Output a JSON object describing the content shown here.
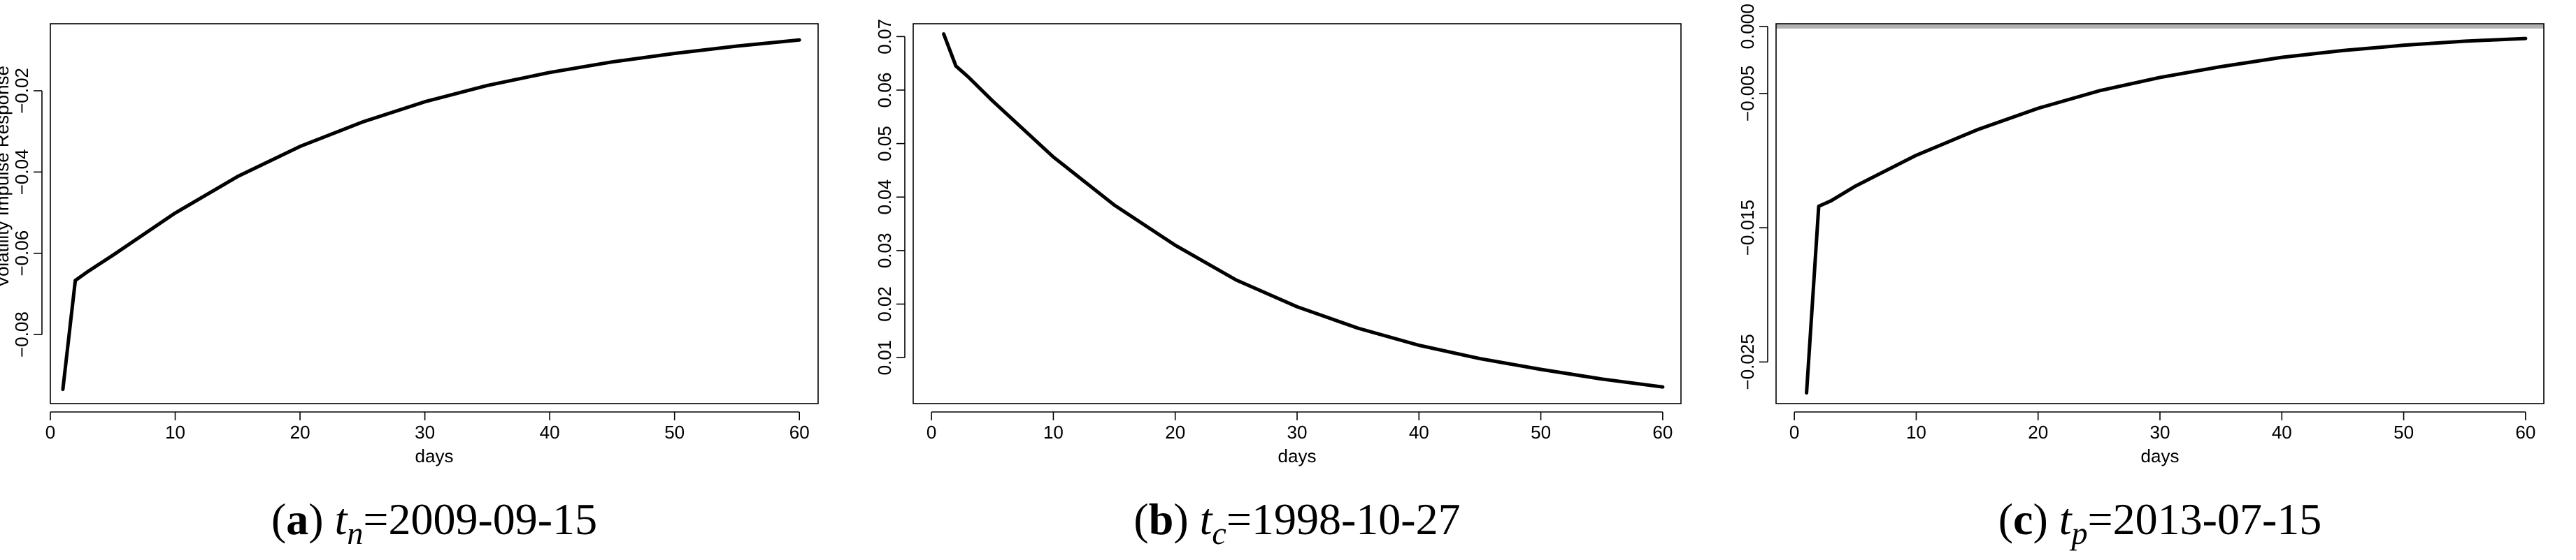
{
  "chart_data": [
    {
      "type": "line",
      "panel": "a",
      "caption_prefix": "(",
      "caption_letter": "a",
      "caption_suffix": ")",
      "caption_var": "t",
      "caption_sub": "n",
      "caption_value": "=2009-09-15",
      "xlabel": "days",
      "ylabel": "Volatility Impulse Response",
      "xlim": [
        0,
        61.5
      ],
      "ylim": [
        -0.097,
        -0.0035
      ],
      "xticks": [
        0,
        10,
        20,
        30,
        40,
        50,
        60
      ],
      "yticks": [
        -0.08,
        -0.06,
        -0.04,
        -0.02
      ],
      "ytick_labels": [
        "−0.08",
        "−0.06",
        "−0.04",
        "−0.02"
      ],
      "reference_line": null,
      "series": [
        {
          "x": [
            1,
            2,
            3,
            5,
            10,
            15,
            20,
            25,
            30,
            35,
            40,
            45,
            50,
            55,
            60
          ],
          "y": [
            -0.0935,
            -0.0667,
            -0.0645,
            -0.0605,
            -0.0501,
            -0.0411,
            -0.0337,
            -0.0277,
            -0.0227,
            -0.0187,
            -0.0155,
            -0.0129,
            -0.0108,
            -0.009,
            -0.0075
          ]
        }
      ]
    },
    {
      "type": "line",
      "panel": "b",
      "caption_prefix": "(",
      "caption_letter": "b",
      "caption_suffix": ")",
      "caption_var": "t",
      "caption_sub": "c",
      "caption_value": "=1998-10-27",
      "xlabel": "days",
      "ylabel": "",
      "xlim": [
        -1.5,
        61.5
      ],
      "ylim": [
        0.0014,
        0.0724
      ],
      "xticks": [
        0,
        10,
        20,
        30,
        40,
        50,
        60
      ],
      "yticks": [
        0.01,
        0.02,
        0.03,
        0.04,
        0.05,
        0.06,
        0.07
      ],
      "ytick_labels": [
        "0.01",
        "0.02",
        "0.03",
        "0.04",
        "0.05",
        "0.06",
        "0.07"
      ],
      "reference_line": null,
      "series": [
        {
          "x": [
            1,
            2,
            3,
            5,
            10,
            15,
            20,
            25,
            30,
            35,
            40,
            45,
            50,
            55,
            60
          ],
          "y": [
            0.0705,
            0.0645,
            0.0625,
            0.058,
            0.0475,
            0.0385,
            0.031,
            0.0245,
            0.0195,
            0.0155,
            0.0123,
            0.0098,
            0.0078,
            0.006,
            0.0045
          ]
        }
      ]
    },
    {
      "type": "line",
      "panel": "c",
      "caption_prefix": "(",
      "caption_letter": "c",
      "caption_suffix": ")",
      "caption_var": "t",
      "caption_sub": "p",
      "caption_value": "=2013-07-15",
      "xlabel": "days",
      "ylabel": "",
      "xlim": [
        -1.5,
        61.5
      ],
      "ylim": [
        -0.0281,
        0.0002
      ],
      "xticks": [
        0,
        10,
        20,
        30,
        40,
        50,
        60
      ],
      "yticks": [
        -0.025,
        -0.015,
        -0.005,
        0.0
      ],
      "ytick_labels": [
        "−0.025",
        "−0.015",
        "−0.005",
        "0.000"
      ],
      "reference_line": {
        "y": 0.0,
        "color": "#b0b0b0"
      },
      "series": [
        {
          "x": [
            1,
            2,
            3,
            5,
            10,
            15,
            20,
            25,
            30,
            35,
            40,
            45,
            50,
            55,
            60
          ],
          "y": [
            -0.0273,
            -0.0134,
            -0.013,
            -0.0119,
            -0.0096,
            -0.0077,
            -0.0061,
            -0.0048,
            -0.0038,
            -0.003,
            -0.0023,
            -0.0018,
            -0.0014,
            -0.0011,
            -0.0009
          ]
        }
      ]
    }
  ]
}
